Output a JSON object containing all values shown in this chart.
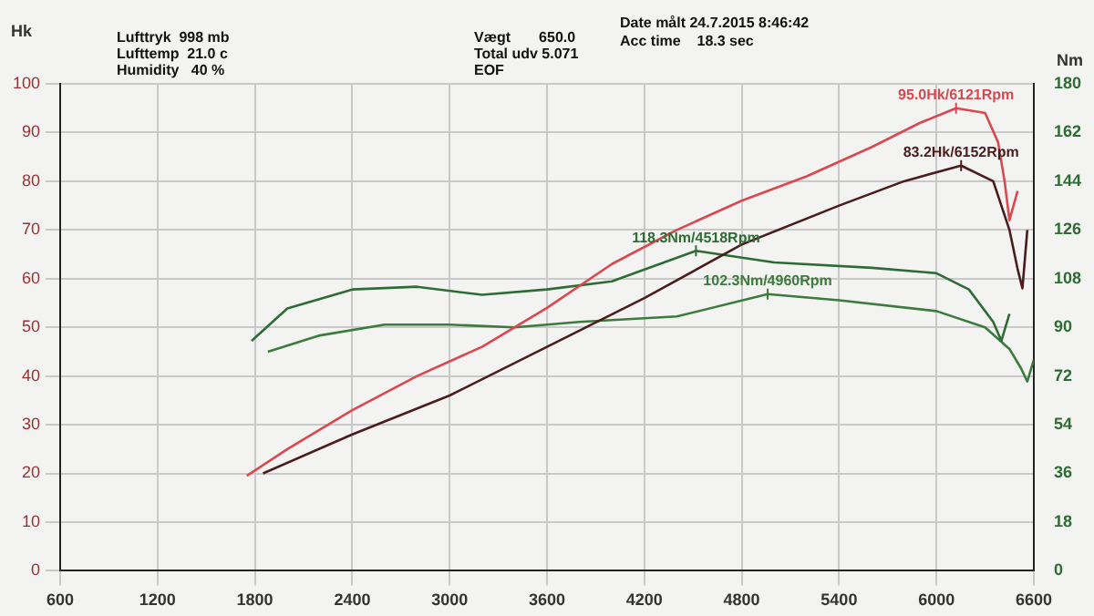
{
  "chart_data": {
    "type": "line",
    "ylabel": "Hk",
    "y2label": "Nm",
    "annotations": [
      "Lufttryk  998 mb",
      "Lufttemp  21.0 c",
      "Humidity   40 %",
      "Vægt       650.0",
      "Total udv 5.071",
      "EOF",
      "Date målt 24.7.2015 8:46:42",
      "Acc time    18.3 sec"
    ],
    "xlim": [
      600,
      6600
    ],
    "xticks": [
      600,
      1200,
      1800,
      2400,
      3000,
      3600,
      4200,
      4800,
      5400,
      6000,
      6600
    ],
    "ylim": [
      0,
      100
    ],
    "yticks": [
      0,
      10,
      20,
      30,
      40,
      50,
      60,
      70,
      80,
      90,
      100
    ],
    "y2lim": [
      0,
      180
    ],
    "y2ticks": [
      0,
      18,
      36,
      54,
      72,
      90,
      108,
      126,
      144,
      162,
      180
    ],
    "grid": true,
    "legend": false,
    "marker": "none",
    "line_style": "solid",
    "series": [
      {
        "color": "#d9474f",
        "x": [
          1750,
          2000,
          2400,
          2800,
          3200,
          3600,
          4000,
          4400,
          4800,
          5200,
          5600,
          5900,
          6121,
          6300,
          6380,
          6420,
          6450,
          6500
        ],
        "values": [
          19.5,
          25,
          33,
          40,
          46,
          54,
          63,
          70,
          76,
          81,
          87,
          92,
          95,
          94,
          88,
          80,
          72,
          78
        ],
        "value_labels": [
          null,
          null,
          null,
          null,
          null,
          null,
          null,
          null,
          null,
          null,
          null,
          null,
          "95.0Hk/6121Rpm",
          null,
          null,
          null,
          null,
          null
        ]
      },
      {
        "color": "#4a1c1c",
        "x": [
          1850,
          2400,
          3000,
          3600,
          4200,
          4800,
          5400,
          5800,
          6152,
          6350,
          6450,
          6500,
          6530,
          6560
        ],
        "values": [
          20,
          28,
          36,
          46,
          56,
          67,
          75,
          80,
          83.2,
          80,
          70,
          62,
          58,
          70
        ],
        "value_labels": [
          null,
          null,
          null,
          null,
          null,
          null,
          null,
          null,
          "83.2Hk/6152Rpm",
          null,
          null,
          null,
          null,
          null
        ]
      },
      {
        "color": "#2f6b35",
        "axis": "y2",
        "x": [
          1780,
          2000,
          2400,
          2800,
          3200,
          3600,
          4000,
          4518,
          5000,
          5600,
          6000,
          6200,
          6350,
          6400,
          6450
        ],
        "values": [
          85,
          97,
          104,
          105,
          102,
          104,
          107,
          118.3,
          114,
          112,
          110,
          104,
          92,
          85,
          95
        ],
        "value_labels": [
          null,
          null,
          null,
          null,
          null,
          null,
          null,
          "118.3Nm/4518Rpm",
          null,
          null,
          null,
          null,
          null,
          null,
          null
        ]
      },
      {
        "color": "#3d7a3d",
        "axis": "y2",
        "x": [
          1880,
          2200,
          2600,
          3000,
          3400,
          3800,
          4400,
          4960,
          5400,
          6000,
          6300,
          6450,
          6520,
          6560,
          6600
        ],
        "values": [
          81,
          87,
          91,
          91,
          90,
          92,
          94,
          102.3,
          100,
          96,
          90,
          82,
          75,
          70,
          78
        ],
        "value_labels": [
          null,
          null,
          null,
          null,
          null,
          null,
          null,
          "102.3Nm/4960Rpm",
          null,
          null,
          null,
          null,
          null,
          null,
          null
        ]
      }
    ]
  }
}
